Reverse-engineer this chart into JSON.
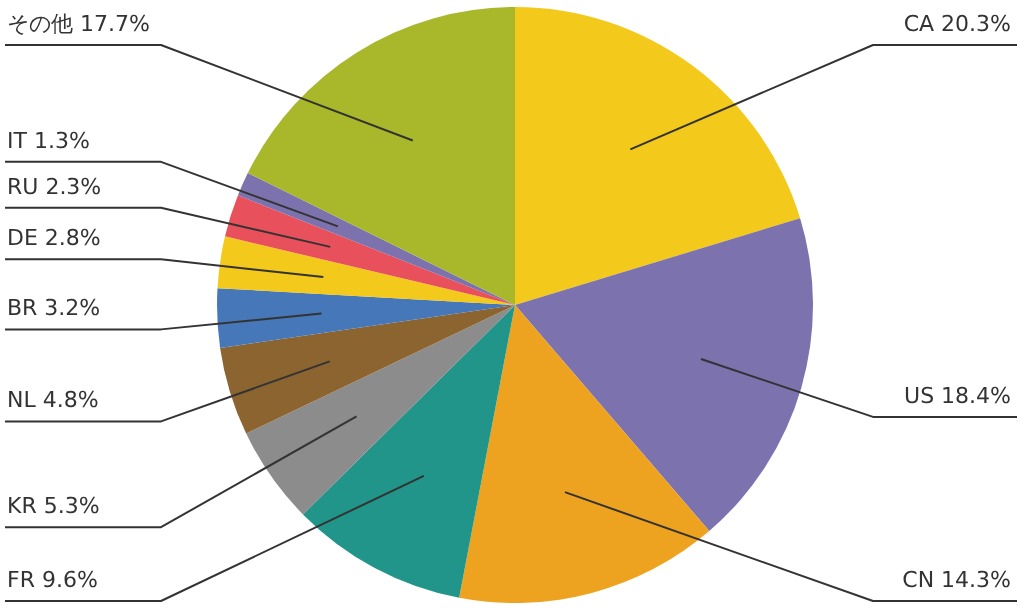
{
  "chart_data": {
    "type": "pie",
    "categories": [
      "CA",
      "US",
      "CN",
      "FR",
      "KR",
      "NL",
      "BR",
      "DE",
      "RU",
      "IT",
      "その他"
    ],
    "values": [
      20.3,
      18.4,
      14.3,
      9.6,
      5.3,
      4.8,
      3.2,
      2.8,
      2.3,
      1.3,
      17.7
    ],
    "value_labels": [
      "20.3%",
      "18.4%",
      "14.3%",
      "9.6%",
      "5.3%",
      "4.8%",
      "3.2%",
      "2.8%",
      "2.3%",
      "1.3%",
      "17.7%"
    ],
    "colors": [
      "#f3c91c",
      "#7b72ae",
      "#eea320",
      "#21958a",
      "#8c8c8c",
      "#8c6430",
      "#4677b8",
      "#f3c91c",
      "#e8505b",
      "#7b72ae",
      "#a9b82a"
    ]
  }
}
